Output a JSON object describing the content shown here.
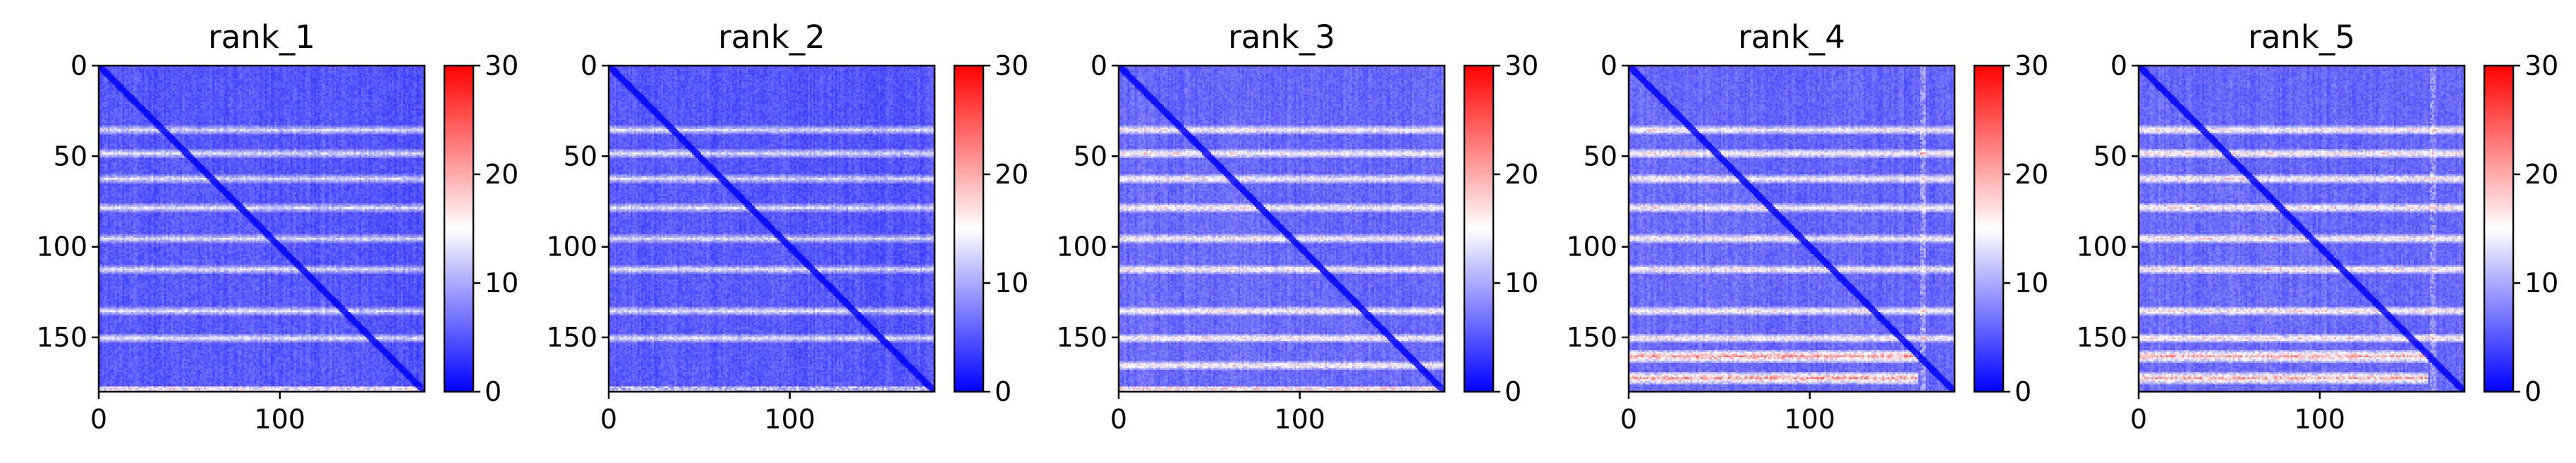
{
  "chart_data": [
    {
      "type": "heatmap",
      "title": "rank_1",
      "x_range": [
        0,
        180
      ],
      "y_range": [
        0,
        180
      ],
      "y_inverted": true,
      "x_ticks": [
        0,
        100
      ],
      "y_ticks": [
        0,
        50,
        100,
        150
      ],
      "colorbar": {
        "colormap": "bwr",
        "range": [
          0,
          30
        ],
        "ticks": [
          0,
          10,
          20,
          30
        ]
      },
      "features": {
        "diagonal": "low values (~0) along main diagonal",
        "horizontal_bands": [
          35,
          48,
          62,
          78,
          95,
          112,
          135,
          150
        ],
        "band_value": 9,
        "bottom_band_value": 18,
        "background_value": 3
      }
    },
    {
      "type": "heatmap",
      "title": "rank_2",
      "x_range": [
        0,
        180
      ],
      "y_range": [
        0,
        180
      ],
      "y_inverted": true,
      "x_ticks": [
        0,
        100
      ],
      "y_ticks": [
        0,
        50,
        100,
        150
      ],
      "colorbar": {
        "colormap": "bwr",
        "range": [
          0,
          30
        ],
        "ticks": [
          0,
          10,
          20,
          30
        ]
      },
      "features": {
        "diagonal": "low values (~0) along main diagonal",
        "horizontal_bands": [
          35,
          48,
          62,
          78,
          95,
          112,
          135,
          150
        ],
        "band_value": 9,
        "bottom_band_value": 14,
        "background_value": 3
      }
    },
    {
      "type": "heatmap",
      "title": "rank_3",
      "x_range": [
        0,
        180
      ],
      "y_range": [
        0,
        180
      ],
      "y_inverted": true,
      "x_ticks": [
        0,
        100
      ],
      "y_ticks": [
        0,
        50,
        100,
        150
      ],
      "colorbar": {
        "colormap": "bwr",
        "range": [
          0,
          30
        ],
        "ticks": [
          0,
          10,
          20,
          30
        ]
      },
      "features": {
        "diagonal": "low values (~0) along main diagonal",
        "horizontal_bands": [
          35,
          48,
          62,
          78,
          95,
          112,
          135,
          150,
          165
        ],
        "band_value": 11,
        "bottom_band_value": 20,
        "background_value": 4
      }
    },
    {
      "type": "heatmap",
      "title": "rank_4",
      "x_range": [
        0,
        180
      ],
      "y_range": [
        0,
        180
      ],
      "y_inverted": true,
      "x_ticks": [
        0,
        100
      ],
      "y_ticks": [
        0,
        50,
        100,
        150
      ],
      "colorbar": {
        "colormap": "bwr",
        "range": [
          0,
          30
        ],
        "ticks": [
          0,
          10,
          20,
          30
        ]
      },
      "features": {
        "diagonal": "low values (~0) along main diagonal",
        "horizontal_bands": [
          35,
          48,
          62,
          78,
          95,
          112,
          135,
          150
        ],
        "band_value": 11,
        "hot_band_rows": [
          160,
          172
        ],
        "hot_band_value": 22,
        "vertical_band_col": 162,
        "background_value": 4
      }
    },
    {
      "type": "heatmap",
      "title": "rank_5",
      "x_range": [
        0,
        180
      ],
      "y_range": [
        0,
        180
      ],
      "y_inverted": true,
      "x_ticks": [
        0,
        100
      ],
      "y_ticks": [
        0,
        50,
        100,
        150
      ],
      "colorbar": {
        "colormap": "bwr",
        "range": [
          0,
          30
        ],
        "ticks": [
          0,
          10,
          20,
          30
        ]
      },
      "features": {
        "diagonal": "low values (~0) along main diagonal",
        "horizontal_bands": [
          35,
          48,
          62,
          78,
          95,
          112,
          135,
          150
        ],
        "band_value": 12,
        "hot_band_rows": [
          160,
          172
        ],
        "hot_band_value": 21,
        "vertical_band_col": 162,
        "background_value": 4
      }
    }
  ]
}
